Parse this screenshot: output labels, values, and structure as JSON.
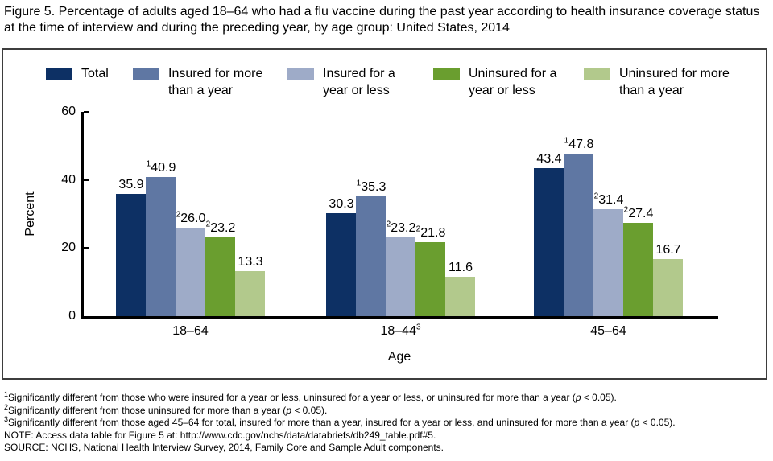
{
  "figure": {
    "title": "Figure 5. Percentage of adults aged 18–64 who had a flu vaccine during the past year according to health insurance coverage status at the time of interview and during the preceding year, by age group: United States, 2014"
  },
  "legend": {
    "items": [
      {
        "label": "Total",
        "lines": [
          "Total"
        ],
        "color": "#0D3064"
      },
      {
        "label": "Insured for more than a year",
        "lines": [
          "Insured for more",
          "than a year"
        ],
        "color": "#5F77A3"
      },
      {
        "label": "Insured for a year or less",
        "lines": [
          "Insured for a",
          "year or less"
        ],
        "color": "#9EABC8"
      },
      {
        "label": "Uninsured for a year or less",
        "lines": [
          "Uninsured for a",
          "year or less"
        ],
        "color": "#6A9E2F"
      },
      {
        "label": "Uninsured for more than a year",
        "lines": [
          "Uninsured for more",
          "than a year"
        ],
        "color": "#B2C98C"
      }
    ]
  },
  "chart_data": {
    "type": "bar",
    "title": "",
    "xlabel": "Age",
    "ylabel": "Percent",
    "ylim": [
      0,
      60
    ],
    "yticks": [
      0,
      20,
      40,
      60
    ],
    "grid": false,
    "legend_position": "top",
    "categories": [
      {
        "label": "18–64",
        "sup": ""
      },
      {
        "label": "18–44",
        "sup": "3"
      },
      {
        "label": "45–64",
        "sup": ""
      }
    ],
    "series": [
      {
        "name": "Total",
        "color": "#0D3064",
        "values": [
          35.9,
          30.3,
          43.4
        ],
        "value_sups": [
          "",
          "",
          ""
        ]
      },
      {
        "name": "Insured for more than a year",
        "color": "#5F77A3",
        "values": [
          40.9,
          35.3,
          47.8
        ],
        "value_sups": [
          "1",
          "1",
          "1"
        ]
      },
      {
        "name": "Insured for a year or less",
        "color": "#9EABC8",
        "values": [
          26.0,
          23.2,
          31.4
        ],
        "value_sups": [
          "2",
          "2",
          "2"
        ]
      },
      {
        "name": "Uninsured for a year or less",
        "color": "#6A9E2F",
        "values": [
          23.2,
          21.8,
          27.4
        ],
        "value_sups": [
          "2",
          "2",
          "2"
        ]
      },
      {
        "name": "Uninsured for more than a year",
        "color": "#B2C98C",
        "values": [
          13.3,
          11.6,
          16.7
        ],
        "value_sups": [
          "",
          "",
          ""
        ]
      }
    ]
  },
  "footnotes": [
    {
      "sup": "1",
      "text": "Significantly different from those who were insured for a year or less, uninsured for a year or less, or uninsured for more than a year (p < 0.05)."
    },
    {
      "sup": "2",
      "text": "Significantly different from those uninsured for more than a year (p < 0.05)."
    },
    {
      "sup": "3",
      "text": "Significantly different from those aged 45–64 for total, insured for more than a year, insured for a year or less, and uninsured for more than a year (p < 0.05)."
    },
    {
      "sup": "",
      "text": "NOTE: Access data table for Figure 5 at: http://www.cdc.gov/nchs/data/databriefs/db249_table.pdf#5."
    },
    {
      "sup": "",
      "text": "SOURCE: NCHS, National Health Interview Survey, 2014, Family Core and Sample Adult components."
    }
  ]
}
